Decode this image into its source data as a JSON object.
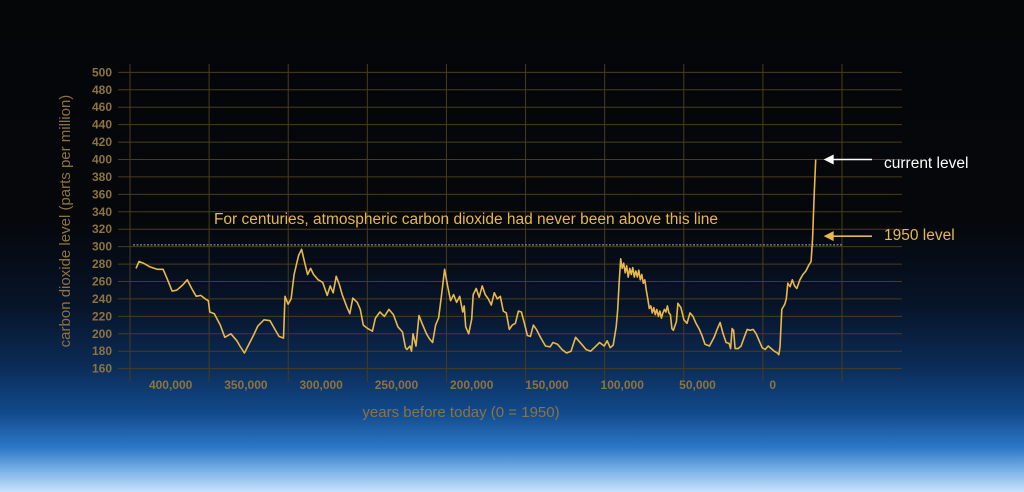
{
  "chart_data": {
    "type": "line",
    "xlabel": "years before today (0 = 1950)",
    "ylabel": "carbon dioxide level (parts per million)",
    "xlim": [
      427000,
      -46000
    ],
    "ylim": [
      155,
      505
    ],
    "y_ticks": [
      500,
      480,
      460,
      440,
      420,
      400,
      380,
      360,
      340,
      320,
      300,
      280,
      260,
      240,
      220,
      200,
      180,
      160
    ],
    "x_ticks": [
      400000,
      350000,
      300000,
      250000,
      200000,
      150000,
      100000,
      50000,
      0
    ],
    "x_tick_labels": [
      "400,000",
      "350,000",
      "300,000",
      "250,000",
      "200,000",
      "150,000",
      "100,000",
      "50,000",
      "0"
    ],
    "grid": true,
    "series": [
      {
        "color": "#e9b84a",
        "points": [
          [
            423000,
            275
          ],
          [
            421000,
            283
          ],
          [
            418000,
            281
          ],
          [
            414000,
            277
          ],
          [
            409000,
            274
          ],
          [
            405000,
            274
          ],
          [
            402000,
            262
          ],
          [
            399000,
            249
          ],
          [
            396000,
            250
          ],
          [
            392000,
            256
          ],
          [
            389000,
            262
          ],
          [
            386000,
            252
          ],
          [
            383000,
            243
          ],
          [
            380000,
            244
          ],
          [
            377000,
            240
          ],
          [
            375000,
            238
          ],
          [
            374000,
            225
          ],
          [
            371000,
            223
          ],
          [
            367000,
            210
          ],
          [
            364000,
            196
          ],
          [
            360000,
            200
          ],
          [
            356000,
            192
          ],
          [
            354000,
            186
          ],
          [
            351000,
            178
          ],
          [
            348000,
            188
          ],
          [
            345000,
            198
          ],
          [
            342000,
            209
          ],
          [
            338000,
            216
          ],
          [
            334000,
            215
          ],
          [
            331000,
            206
          ],
          [
            328000,
            197
          ],
          [
            325000,
            195
          ],
          [
            324000,
            243
          ],
          [
            322000,
            234
          ],
          [
            320000,
            240
          ],
          [
            318000,
            268
          ],
          [
            315000,
            290
          ],
          [
            313000,
            297
          ],
          [
            311000,
            282
          ],
          [
            309000,
            268
          ],
          [
            307000,
            275
          ],
          [
            305000,
            268
          ],
          [
            302000,
            262
          ],
          [
            299000,
            259
          ],
          [
            296000,
            244
          ],
          [
            294000,
            255
          ],
          [
            292000,
            247
          ],
          [
            290000,
            266
          ],
          [
            288000,
            257
          ],
          [
            286000,
            245
          ],
          [
            283000,
            231
          ],
          [
            281000,
            223
          ],
          [
            279000,
            241
          ],
          [
            276000,
            236
          ],
          [
            274000,
            228
          ],
          [
            272000,
            210
          ],
          [
            269000,
            206
          ],
          [
            266000,
            203
          ],
          [
            264000,
            218
          ],
          [
            261000,
            225
          ],
          [
            258000,
            220
          ],
          [
            255000,
            228
          ],
          [
            252000,
            222
          ],
          [
            249000,
            208
          ],
          [
            246000,
            202
          ],
          [
            244000,
            184
          ],
          [
            243000,
            182
          ],
          [
            241000,
            186
          ],
          [
            240000,
            180
          ],
          [
            239000,
            200
          ],
          [
            237000,
            186
          ],
          [
            235000,
            221
          ],
          [
            233000,
            212
          ],
          [
            230000,
            200
          ],
          [
            228000,
            194
          ],
          [
            226000,
            190
          ],
          [
            224000,
            210
          ],
          [
            222000,
            218
          ],
          [
            220000,
            245
          ],
          [
            218000,
            274
          ],
          [
            216000,
            255
          ],
          [
            214000,
            238
          ],
          [
            212000,
            245
          ],
          [
            210000,
            236
          ],
          [
            208000,
            243
          ],
          [
            206000,
            225
          ],
          [
            205000,
            232
          ],
          [
            204000,
            208
          ],
          [
            202000,
            200
          ],
          [
            200000,
            217
          ],
          [
            199000,
            245
          ],
          [
            197000,
            252
          ],
          [
            195000,
            242
          ],
          [
            193000,
            255
          ],
          [
            191000,
            245
          ],
          [
            189000,
            240
          ],
          [
            187000,
            233
          ],
          [
            185000,
            247
          ],
          [
            183000,
            240
          ],
          [
            181000,
            243
          ],
          [
            179000,
            226
          ],
          [
            177000,
            224
          ],
          [
            175000,
            205
          ],
          [
            173000,
            210
          ],
          [
            171000,
            212
          ],
          [
            169000,
            226
          ],
          [
            167000,
            225
          ],
          [
            165000,
            212
          ],
          [
            163000,
            198
          ],
          [
            161000,
            197
          ],
          [
            159000,
            210
          ],
          [
            157000,
            205
          ],
          [
            154000,
            195
          ],
          [
            151000,
            186
          ],
          [
            148000,
            185
          ],
          [
            146000,
            190
          ],
          [
            143000,
            188
          ],
          [
            140000,
            182
          ],
          [
            137000,
            178
          ],
          [
            134000,
            180
          ],
          [
            131000,
            196
          ],
          [
            129000,
            192
          ],
          [
            127000,
            188
          ],
          [
            124000,
            182
          ],
          [
            121000,
            180
          ],
          [
            118000,
            185
          ],
          [
            115000,
            190
          ],
          [
            112000,
            186
          ],
          [
            110000,
            192
          ],
          [
            108000,
            184
          ],
          [
            106000,
            187
          ],
          [
            104000,
            208
          ],
          [
            103000,
            228
          ],
          [
            102000,
            260
          ],
          [
            101000,
            286
          ],
          [
            100000,
            275
          ],
          [
            99000,
            281
          ],
          [
            98000,
            270
          ],
          [
            97000,
            278
          ],
          [
            96000,
            265
          ],
          [
            95000,
            275
          ],
          [
            94000,
            268
          ],
          [
            93000,
            276
          ],
          [
            92000,
            265
          ],
          [
            91000,
            272
          ],
          [
            90000,
            265
          ],
          [
            89000,
            273
          ],
          [
            88000,
            262
          ],
          [
            87000,
            268
          ],
          [
            86000,
            258
          ],
          [
            85000,
            262
          ],
          [
            84000,
            250
          ],
          [
            83000,
            240
          ],
          [
            82000,
            229
          ],
          [
            81000,
            232
          ],
          [
            80000,
            224
          ],
          [
            79000,
            230
          ],
          [
            78000,
            222
          ],
          [
            77000,
            228
          ],
          [
            76000,
            220
          ],
          [
            75000,
            226
          ],
          [
            74000,
            218
          ],
          [
            73000,
            224
          ],
          [
            72000,
            228
          ],
          [
            71000,
            225
          ],
          [
            70000,
            232
          ],
          [
            69000,
            224
          ],
          [
            68000,
            222
          ],
          [
            67000,
            206
          ],
          [
            66000,
            204
          ],
          [
            65000,
            209
          ],
          [
            64000,
            214
          ],
          [
            63000,
            235
          ],
          [
            61000,
            230
          ],
          [
            59000,
            216
          ],
          [
            57000,
            212
          ],
          [
            55000,
            224
          ],
          [
            53000,
            220
          ],
          [
            51000,
            212
          ],
          [
            49000,
            206
          ],
          [
            47000,
            198
          ],
          [
            45000,
            188
          ],
          [
            42000,
            186
          ],
          [
            39000,
            196
          ],
          [
            37000,
            205
          ],
          [
            35000,
            213
          ],
          [
            33000,
            200
          ],
          [
            31000,
            190
          ],
          [
            29000,
            189
          ],
          [
            28000,
            183
          ],
          [
            27000,
            206
          ],
          [
            26000,
            204
          ],
          [
            25000,
            183
          ],
          [
            23000,
            183
          ],
          [
            21000,
            186
          ],
          [
            19000,
            196
          ],
          [
            17000,
            205
          ],
          [
            15000,
            204
          ],
          [
            13000,
            205
          ],
          [
            11000,
            200
          ],
          [
            9000,
            192
          ],
          [
            7000,
            184
          ],
          [
            5000,
            182
          ],
          [
            3000,
            186
          ],
          [
            1000,
            183
          ],
          [
            -1000,
            180
          ],
          [
            -2000,
            179
          ],
          [
            -3000,
            178
          ],
          [
            -4000,
            176
          ],
          [
            -4800,
            185
          ],
          [
            -6000,
            228
          ],
          [
            -8000,
            234
          ],
          [
            -9000,
            240
          ],
          [
            -10000,
            258
          ],
          [
            -11500,
            254
          ],
          [
            -13000,
            262
          ],
          [
            -14500,
            255
          ],
          [
            -16000,
            252
          ],
          [
            -18000,
            262
          ],
          [
            -20000,
            268
          ],
          [
            -22000,
            272
          ],
          [
            -24000,
            279
          ],
          [
            -25500,
            283
          ],
          [
            -26500,
            310
          ],
          [
            -27500,
            360
          ],
          [
            -28500,
            400
          ]
        ]
      }
    ],
    "reference_line": {
      "y": 302,
      "color": "#8a8a8a"
    },
    "annotations": {
      "centuries_text": "For centuries, atmospheric carbon dioxide had never been above this line",
      "current_label": "current level",
      "current_y": 400,
      "current_arrow_color": "#ffffff",
      "level1950_label": "1950 level",
      "level1950_y": 312,
      "level1950_arrow_color": "#e9b84a"
    },
    "colors": {
      "line": "#e9b84a",
      "grid": "#4a3c1d",
      "tick_text": "#8c7340"
    }
  }
}
